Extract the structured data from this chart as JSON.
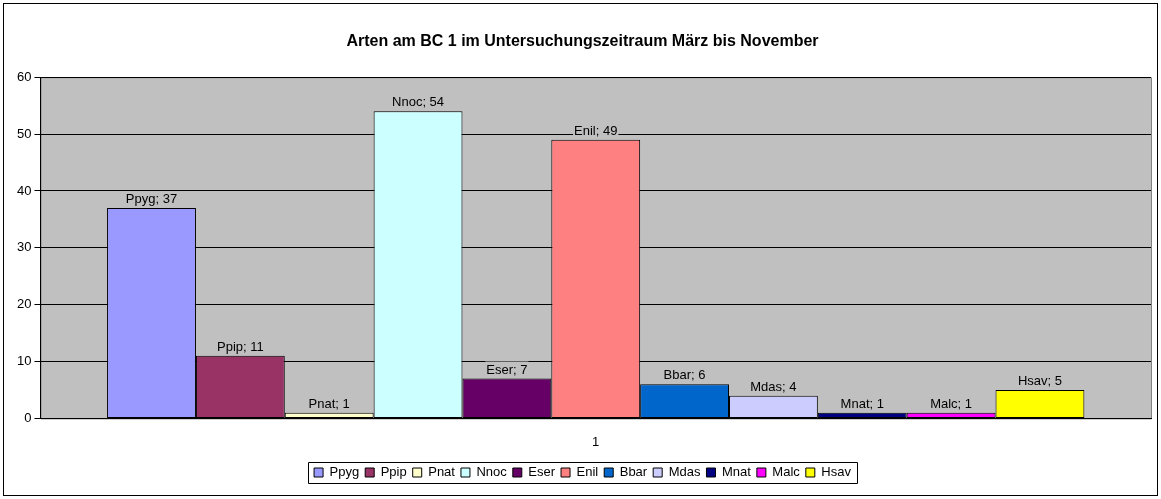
{
  "chart_data": {
    "type": "bar",
    "title": "Arten am BC 1 im Untersuchungszeitraum März bis November",
    "categories": [
      "1"
    ],
    "ylim": [
      0,
      60
    ],
    "yticks": [
      0,
      10,
      20,
      30,
      40,
      50,
      60
    ],
    "grid": "y",
    "legend": "bottom",
    "series": [
      {
        "name": "Ppyg",
        "color": "#9999ff",
        "values": [
          37
        ],
        "value_labels": [
          "Ppyg; 37"
        ]
      },
      {
        "name": "Ppip",
        "color": "#993366",
        "values": [
          11
        ],
        "value_labels": [
          "Ppip; 11"
        ]
      },
      {
        "name": "Pnat",
        "color": "#ffffcc",
        "values": [
          1
        ],
        "value_labels": [
          "Pnat; 1"
        ]
      },
      {
        "name": "Nnoc",
        "color": "#ccffff",
        "values": [
          54
        ],
        "value_labels": [
          "Nnoc; 54"
        ]
      },
      {
        "name": "Eser",
        "color": "#660066",
        "values": [
          7
        ],
        "value_labels": [
          "Eser; 7"
        ]
      },
      {
        "name": "Enil",
        "color": "#ff8080",
        "values": [
          49
        ],
        "value_labels": [
          "Enil; 49"
        ]
      },
      {
        "name": "Bbar",
        "color": "#0066cc",
        "values": [
          6
        ],
        "value_labels": [
          "Bbar; 6"
        ]
      },
      {
        "name": "Mdas",
        "color": "#ccccff",
        "values": [
          4
        ],
        "value_labels": [
          "Mdas; 4"
        ]
      },
      {
        "name": "Mnat",
        "color": "#000080",
        "values": [
          1
        ],
        "value_labels": [
          "Mnat; 1"
        ]
      },
      {
        "name": "Malc",
        "color": "#ff00ff",
        "values": [
          1
        ],
        "value_labels": [
          "Malc; 1"
        ]
      },
      {
        "name": "Hsav",
        "color": "#ffff00",
        "values": [
          5
        ],
        "value_labels": [
          "Hsav; 5"
        ]
      }
    ]
  }
}
